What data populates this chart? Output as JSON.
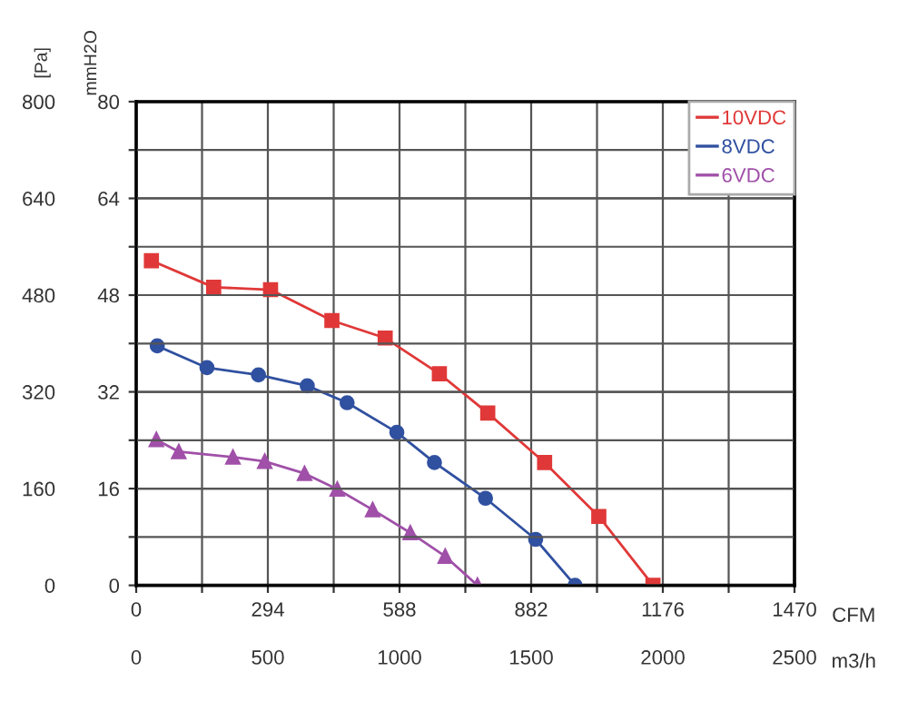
{
  "chart_data": {
    "type": "line",
    "xlabel": "CFM",
    "x2label": "m3/h",
    "ylabel": "[Pa]",
    "y2label": "mmH2O",
    "xlim": [
      0,
      1470
    ],
    "xticks": [
      0,
      {
        "value": 147,
        "label": null
      },
      294,
      {
        "value": 441,
        "label": null
      },
      588,
      {
        "value": 735,
        "label": null
      },
      882,
      {
        "value": 1029,
        "label": null
      },
      1176,
      {
        "value": 1323,
        "label": null
      },
      1470
    ],
    "x2lim": [
      0,
      2500
    ],
    "x2ticks": [
      0,
      500,
      1000,
      1500,
      2000,
      2500
    ],
    "ylim": [
      0,
      800
    ],
    "yticks": [
      0,
      160,
      320,
      480,
      640,
      800
    ],
    "y2lim": [
      0,
      80
    ],
    "y2ticks": [
      0,
      {
        "value": 8,
        "label": null
      },
      16,
      {
        "value": 24,
        "label": null
      },
      32,
      {
        "value": 40,
        "label": null
      },
      48,
      {
        "value": 56,
        "label": null
      },
      64,
      {
        "value": 72,
        "label": null
      },
      80
    ],
    "grid": true,
    "legend": "top right",
    "line_style": "solid",
    "series": [
      {
        "name": "10VDC",
        "color": "#e03838",
        "marker": "square",
        "x": [
          34,
          173,
          300,
          437,
          556,
          677,
          785,
          912,
          1033,
          1154
        ],
        "values": [
          537,
          493,
          489,
          438,
          409,
          350,
          285,
          203,
          114,
          0
        ]
      },
      {
        "name": "8VDC",
        "color": "#3050a0",
        "marker": "circle",
        "x": [
          47,
          158,
          273,
          382,
          471,
          582,
          666,
          780,
          892,
          980
        ],
        "values": [
          396,
          360,
          348,
          330,
          302,
          253,
          203,
          144,
          76,
          0
        ]
      },
      {
        "name": "6VDC",
        "color": "#a050a8",
        "marker": "triangle",
        "x": [
          45,
          95,
          216,
          287,
          376,
          449,
          528,
          612,
          690,
          762
        ],
        "values": [
          241,
          221,
          212,
          205,
          185,
          159,
          125,
          87,
          48,
          0
        ]
      }
    ]
  }
}
